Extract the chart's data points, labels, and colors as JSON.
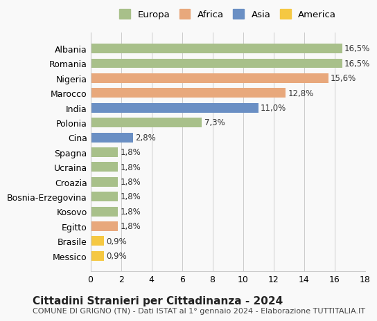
{
  "categories": [
    "Messico",
    "Brasile",
    "Egitto",
    "Kosovo",
    "Bosnia-Erzegovina",
    "Croazia",
    "Ucraina",
    "Spagna",
    "Cina",
    "Polonia",
    "India",
    "Marocco",
    "Nigeria",
    "Romania",
    "Albania"
  ],
  "values": [
    0.9,
    0.9,
    1.8,
    1.8,
    1.8,
    1.8,
    1.8,
    1.8,
    2.8,
    7.3,
    11.0,
    12.8,
    15.6,
    16.5,
    16.5
  ],
  "colors": [
    "#f5c842",
    "#f5c842",
    "#e8a87c",
    "#a8c08a",
    "#a8c08a",
    "#a8c08a",
    "#a8c08a",
    "#a8c08a",
    "#6a8fc4",
    "#a8c08a",
    "#6a8fc4",
    "#e8a87c",
    "#e8a87c",
    "#a8c08a",
    "#a8c08a"
  ],
  "labels": [
    "0,9%",
    "0,9%",
    "1,8%",
    "1,8%",
    "1,8%",
    "1,8%",
    "1,8%",
    "1,8%",
    "2,8%",
    "7,3%",
    "11,0%",
    "12,8%",
    "15,6%",
    "16,5%",
    "16,5%"
  ],
  "xlim": [
    0,
    18
  ],
  "xticks": [
    0,
    2,
    4,
    6,
    8,
    10,
    12,
    14,
    16,
    18
  ],
  "legend_labels": [
    "Europa",
    "Africa",
    "Asia",
    "America"
  ],
  "legend_colors": [
    "#a8c08a",
    "#e8a87c",
    "#6a8fc4",
    "#f5c842"
  ],
  "title": "Cittadini Stranieri per Cittadinanza - 2024",
  "subtitle": "COMUNE DI GRIGNO (TN) - Dati ISTAT al 1° gennaio 2024 - Elaborazione TUTTITALIA.IT",
  "background_color": "#f9f9f9",
  "bar_background": "#ffffff",
  "grid_color": "#cccccc",
  "bar_height": 0.65,
  "label_fontsize": 8.5,
  "title_fontsize": 11,
  "subtitle_fontsize": 8,
  "tick_label_fontsize": 9
}
